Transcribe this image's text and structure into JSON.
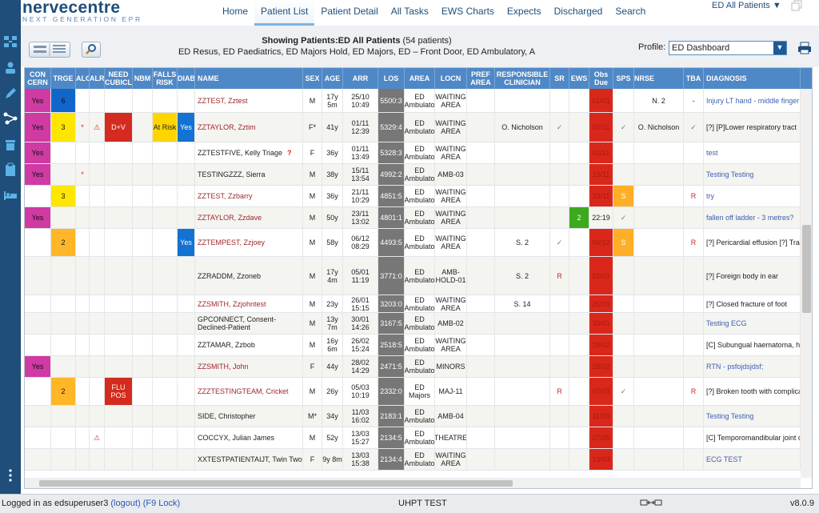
{
  "app": {
    "logo_main": "nervecentre",
    "logo_sub": "NEXT GENERATION EPR",
    "nav": [
      "Home",
      "Patient List",
      "Patient Detail",
      "All Tasks",
      "EWS Charts",
      "Expects",
      "Discharged",
      "Search"
    ],
    "active_nav": "Patient List",
    "list_selector": "ED All Patients ▼"
  },
  "toolbar": {
    "showing_label": "Showing Patients:",
    "showing_list": "ED All Patients",
    "showing_count": "(54 patients)",
    "showing_areas": "ED Resus, ED Paediatrics, ED Majors Hold, ED Majors, ED – Front Door, ED Ambulatory, A",
    "profile_label": "Profile:",
    "profile_value": "ED Dashboard"
  },
  "columns": [
    "CON CERN",
    "TRGE",
    "ALG",
    "ALR",
    "NEED CUBICLE",
    "NBM",
    "FALLS RISK",
    "DIAB",
    "NAME",
    "SEX",
    "AGE",
    "ARR",
    "LOS",
    "AREA",
    "LOCN",
    "PREF AREA",
    "RESPONSIBLE CLINICIAN",
    "SR",
    "EWS",
    "Obs Due",
    "SPS",
    "NRSE",
    "TBA",
    "DIAGNOSIS"
  ],
  "rows": [
    {
      "concern": "Yes",
      "trge": "6",
      "trge_color": "blue",
      "alg": "",
      "alr": "",
      "need": "",
      "nbm": "",
      "falls": "",
      "diab": "",
      "name": "ZZTEST, Zztest",
      "name_red": true,
      "sex": "M",
      "age": "17y 5m",
      "arr": "25/10 10:49",
      "los": "5500:3",
      "area": "ED Ambulato",
      "locn": "WAITING AREA",
      "pref": "",
      "clin": "",
      "sr": "",
      "ews": "",
      "obs": "01/01",
      "obs_clear": false,
      "sps": "",
      "nrse": "N. 2",
      "tba": "-",
      "diag": "Injury LT hand - middle finger",
      "diag_blue": true
    },
    {
      "concern": "Yes",
      "trge": "3",
      "trge_color": "yellow",
      "alg": "*",
      "alr": "⚠",
      "need": "D+V",
      "nbm": "",
      "falls": "At Risk",
      "diab": "Yes",
      "name": "ZZTAYLOR, Zztim",
      "name_red": true,
      "sex": "F*",
      "age": "41y",
      "arr": "01/11 12:39",
      "los": "5329:4",
      "area": "ED Ambulato",
      "locn": "WAITING AREA",
      "pref": "",
      "clin": "O. Nicholson",
      "sr": "✓",
      "ews": "",
      "obs": "01/11",
      "obs_clear": false,
      "sps": "✓",
      "nrse": "O. Nicholson",
      "tba": "✓",
      "diag": "[?] [P]Lower respiratory tract",
      "diag_blue": false
    },
    {
      "concern": "Yes",
      "trge": "",
      "trge_color": "",
      "alg": "",
      "alr": "",
      "need": "",
      "nbm": "",
      "falls": "",
      "diab": "",
      "name": "ZZTESTFIVE, Kelly Triage",
      "name_red": false,
      "qmark": "?",
      "sex": "F",
      "age": "36y",
      "arr": "01/11 13:49",
      "los": "5328:3",
      "area": "ED Ambulato",
      "locn": "WAITING AREA",
      "pref": "",
      "clin": "",
      "sr": "",
      "ews": "",
      "obs": "01/11",
      "obs_clear": false,
      "sps": "",
      "nrse": "",
      "tba": "",
      "diag": "test",
      "diag_blue": true
    },
    {
      "concern": "Yes",
      "trge": "",
      "trge_color": "",
      "alg": "*",
      "alr": "",
      "need": "",
      "nbm": "",
      "falls": "",
      "diab": "",
      "name": "TESTINGZZZ, Sierra",
      "name_red": false,
      "sex": "M",
      "age": "38y",
      "arr": "15/11 13:54",
      "los": "4992:2",
      "area": "ED Ambulato",
      "locn": "AMB-03",
      "pref": "",
      "clin": "",
      "sr": "",
      "ews": "",
      "obs": "15/11",
      "obs_clear": false,
      "sps": "",
      "nrse": "",
      "tba": "",
      "diag": "Testing Testing",
      "diag_blue": true
    },
    {
      "concern": "",
      "trge": "3",
      "trge_color": "yellow",
      "alg": "",
      "alr": "",
      "need": "",
      "nbm": "",
      "falls": "",
      "diab": "",
      "name": "ZZTEST, Zzbarry",
      "name_red": true,
      "sex": "M",
      "age": "36y",
      "arr": "21/11 10:29",
      "los": "4851:5",
      "area": "ED Ambulato",
      "locn": "WAITING AREA",
      "pref": "",
      "clin": "",
      "sr": "",
      "ews": "",
      "obs": "23/11",
      "obs_clear": false,
      "sps": "S",
      "nrse": "",
      "tba": "R",
      "diag": "try",
      "diag_blue": true
    },
    {
      "concern": "Yes",
      "trge": "",
      "trge_color": "",
      "alg": "",
      "alr": "",
      "need": "",
      "nbm": "",
      "falls": "",
      "diab": "",
      "name": "ZZTAYLOR, Zzdave",
      "name_red": true,
      "sex": "M",
      "age": "50y",
      "arr": "23/11 13:02",
      "los": "4801:1",
      "area": "ED Ambulato",
      "locn": "WAITING AREA",
      "pref": "",
      "clin": "",
      "sr": "",
      "ews": "2",
      "obs": "22:19",
      "obs_clear": true,
      "sps": "✓",
      "nrse": "",
      "tba": "",
      "diag": "fallen off ladder - 3 metres?",
      "diag_blue": true
    },
    {
      "concern": "",
      "trge": "2",
      "trge_color": "orange",
      "alg": "",
      "alr": "",
      "need": "",
      "nbm": "",
      "falls": "",
      "diab": "Yes",
      "name": "ZZTEMPEST, Zzjoey",
      "name_red": true,
      "sex": "M",
      "age": "58y",
      "arr": "06/12 08:29",
      "los": "4493:5",
      "area": "ED Ambulato",
      "locn": "WAITING AREA",
      "pref": "",
      "clin": "S. 2",
      "sr": "✓",
      "ews": "",
      "obs": "06/12",
      "obs_clear": false,
      "sps": "S",
      "nrse": "",
      "tba": "R",
      "diag": "[?] Pericardial effusion [?] Tra",
      "diag_blue": false
    },
    {
      "concern": "",
      "trge": "",
      "trge_color": "",
      "alg": "",
      "alr": "",
      "need": "",
      "nbm": "",
      "falls": "",
      "diab": "",
      "name": "ZZRADDM, Zzoneb",
      "name_red": false,
      "sex": "M",
      "age": "17y 4m",
      "arr": "05/01 11:19",
      "los": "3771:0",
      "area": "ED Ambulato",
      "locn": "AMB-HOLD-01",
      "pref": "",
      "clin": "S. 2",
      "sr": "R",
      "ews": "",
      "obs": "22/01",
      "obs_clear": false,
      "sps": "",
      "nrse": "",
      "tba": "",
      "diag": "[?] Foreign body in ear",
      "diag_blue": false
    },
    {
      "concern": "",
      "trge": "",
      "trge_color": "",
      "alg": "",
      "alr": "",
      "need": "",
      "nbm": "",
      "falls": "",
      "diab": "",
      "name": "ZZSMITH, Zzjohntest",
      "name_red": true,
      "sex": "M",
      "age": "23y",
      "arr": "26/01 15:15",
      "los": "3203:0",
      "area": "ED Ambulato",
      "locn": "WAITING AREA",
      "pref": "",
      "clin": "S. 14",
      "sr": "",
      "ews": "",
      "obs": "26/01",
      "obs_clear": false,
      "sps": "",
      "nrse": "",
      "tba": "",
      "diag": "[?] Closed fracture of foot",
      "diag_blue": false
    },
    {
      "concern": "",
      "trge": "",
      "trge_color": "",
      "alg": "",
      "alr": "",
      "need": "",
      "nbm": "",
      "falls": "",
      "diab": "",
      "name": "GPCONNECT, Consent-Declined-Patient",
      "name_red": false,
      "sex": "M",
      "age": "13y 7m",
      "arr": "30/01 14:26",
      "los": "3167:5",
      "area": "ED Ambulato",
      "locn": "AMB-02",
      "pref": "",
      "clin": "",
      "sr": "",
      "ews": "",
      "obs": "30/01",
      "obs_clear": false,
      "sps": "",
      "nrse": "",
      "tba": "",
      "diag": "Testing ECG",
      "diag_blue": true
    },
    {
      "concern": "",
      "trge": "",
      "trge_color": "",
      "alg": "",
      "alr": "",
      "need": "",
      "nbm": "",
      "falls": "",
      "diab": "",
      "name": "ZZTAMAR, Zzbob",
      "name_red": false,
      "sex": "M",
      "age": "16y 6m",
      "arr": "26/02 15:24",
      "los": "2518:5",
      "area": "ED Ambulato",
      "locn": "WAITING AREA",
      "pref": "",
      "clin": "",
      "sr": "",
      "ews": "",
      "obs": "28/02",
      "obs_clear": false,
      "sps": "",
      "nrse": "",
      "tba": "",
      "diag": "[C] Subungual haematoma, h",
      "diag_blue": false
    },
    {
      "concern": "Yes",
      "trge": "",
      "trge_color": "",
      "alg": "",
      "alr": "",
      "need": "",
      "nbm": "",
      "falls": "",
      "diab": "",
      "name": "ZZSMITH, John",
      "name_red": true,
      "sex": "F",
      "age": "44y",
      "arr": "28/02 14:29",
      "los": "2471:5",
      "area": "ED Ambulato",
      "locn": "MINORS",
      "pref": "",
      "clin": "",
      "sr": "",
      "ews": "",
      "obs": "28/02",
      "obs_clear": false,
      "sps": "",
      "nrse": "",
      "tba": "",
      "diag": "RTN - psfojdsjdsf;",
      "diag_blue": true
    },
    {
      "concern": "",
      "trge": "2",
      "trge_color": "orange",
      "alg": "",
      "alr": "",
      "need": "FLU POS",
      "nbm": "",
      "falls": "",
      "diab": "",
      "name": "ZZZTESTINGTEAM, Cricket",
      "name_red": true,
      "sex": "M",
      "age": "26y",
      "arr": "05/03 10:19",
      "los": "2332:0",
      "area": "ED Majors",
      "locn": "MAJ-11",
      "pref": "",
      "clin": "",
      "sr": "R",
      "ews": "",
      "obs": "07/03",
      "obs_clear": false,
      "sps": "✓",
      "nrse": "",
      "tba": "R",
      "diag": "[?] Broken tooth with complica",
      "diag_blue": false
    },
    {
      "concern": "",
      "trge": "",
      "trge_color": "",
      "alg": "",
      "alr": "",
      "need": "",
      "nbm": "",
      "falls": "",
      "diab": "",
      "name": "SIDE, Christopher",
      "name_red": false,
      "sex": "M*",
      "age": "34y",
      "arr": "11/03 16:02",
      "los": "2183:1",
      "area": "ED Ambulato",
      "locn": "AMB-04",
      "pref": "",
      "clin": "",
      "sr": "",
      "ews": "",
      "obs": "11/03",
      "obs_clear": false,
      "sps": "",
      "nrse": "",
      "tba": "",
      "diag": "Testing Testing",
      "diag_blue": true
    },
    {
      "concern": "",
      "trge": "",
      "trge_color": "",
      "alg": "",
      "alr": "⚠",
      "need": "",
      "nbm": "",
      "falls": "",
      "diab": "",
      "name": "COCCYX, Julian James",
      "name_red": false,
      "sex": "M",
      "age": "52y",
      "arr": "13/03 15:27",
      "los": "2134:5",
      "area": "ED Ambulato",
      "locn": "THEATRE",
      "pref": "",
      "clin": "",
      "sr": "",
      "ews": "",
      "obs": "07/05",
      "obs_clear": false,
      "sps": "",
      "nrse": "",
      "tba": "",
      "diag": "[C] Temporomandibular joint c",
      "diag_blue": false
    },
    {
      "concern": "",
      "trge": "",
      "trge_color": "",
      "alg": "",
      "alr": "",
      "need": "",
      "nbm": "",
      "falls": "",
      "diab": "",
      "name": "XXTESTPATIENTAIJT, Twin Two",
      "name_red": false,
      "sex": "F",
      "age": "9y 8m",
      "arr": "13/03 15:38",
      "los": "2134:4",
      "area": "ED Ambulato",
      "locn": "WAITING AREA",
      "pref": "",
      "clin": "",
      "sr": "",
      "ews": "",
      "obs": "13/03",
      "obs_clear": false,
      "sps": "",
      "nrse": "",
      "tba": "",
      "diag": "ECG TEST",
      "diag_blue": true
    }
  ],
  "status": {
    "logged_in": "Logged in as edsuperuser3",
    "logout": "(logout)",
    "lock": "(F9 Lock)",
    "site": "UHPT TEST",
    "version": "v8.0.9"
  },
  "colors": {
    "header": "#4f88c6",
    "sidebar": "#1e4e79",
    "concern": "#cf3aa3",
    "obs_due": "#d9281b",
    "los": "#777777"
  }
}
